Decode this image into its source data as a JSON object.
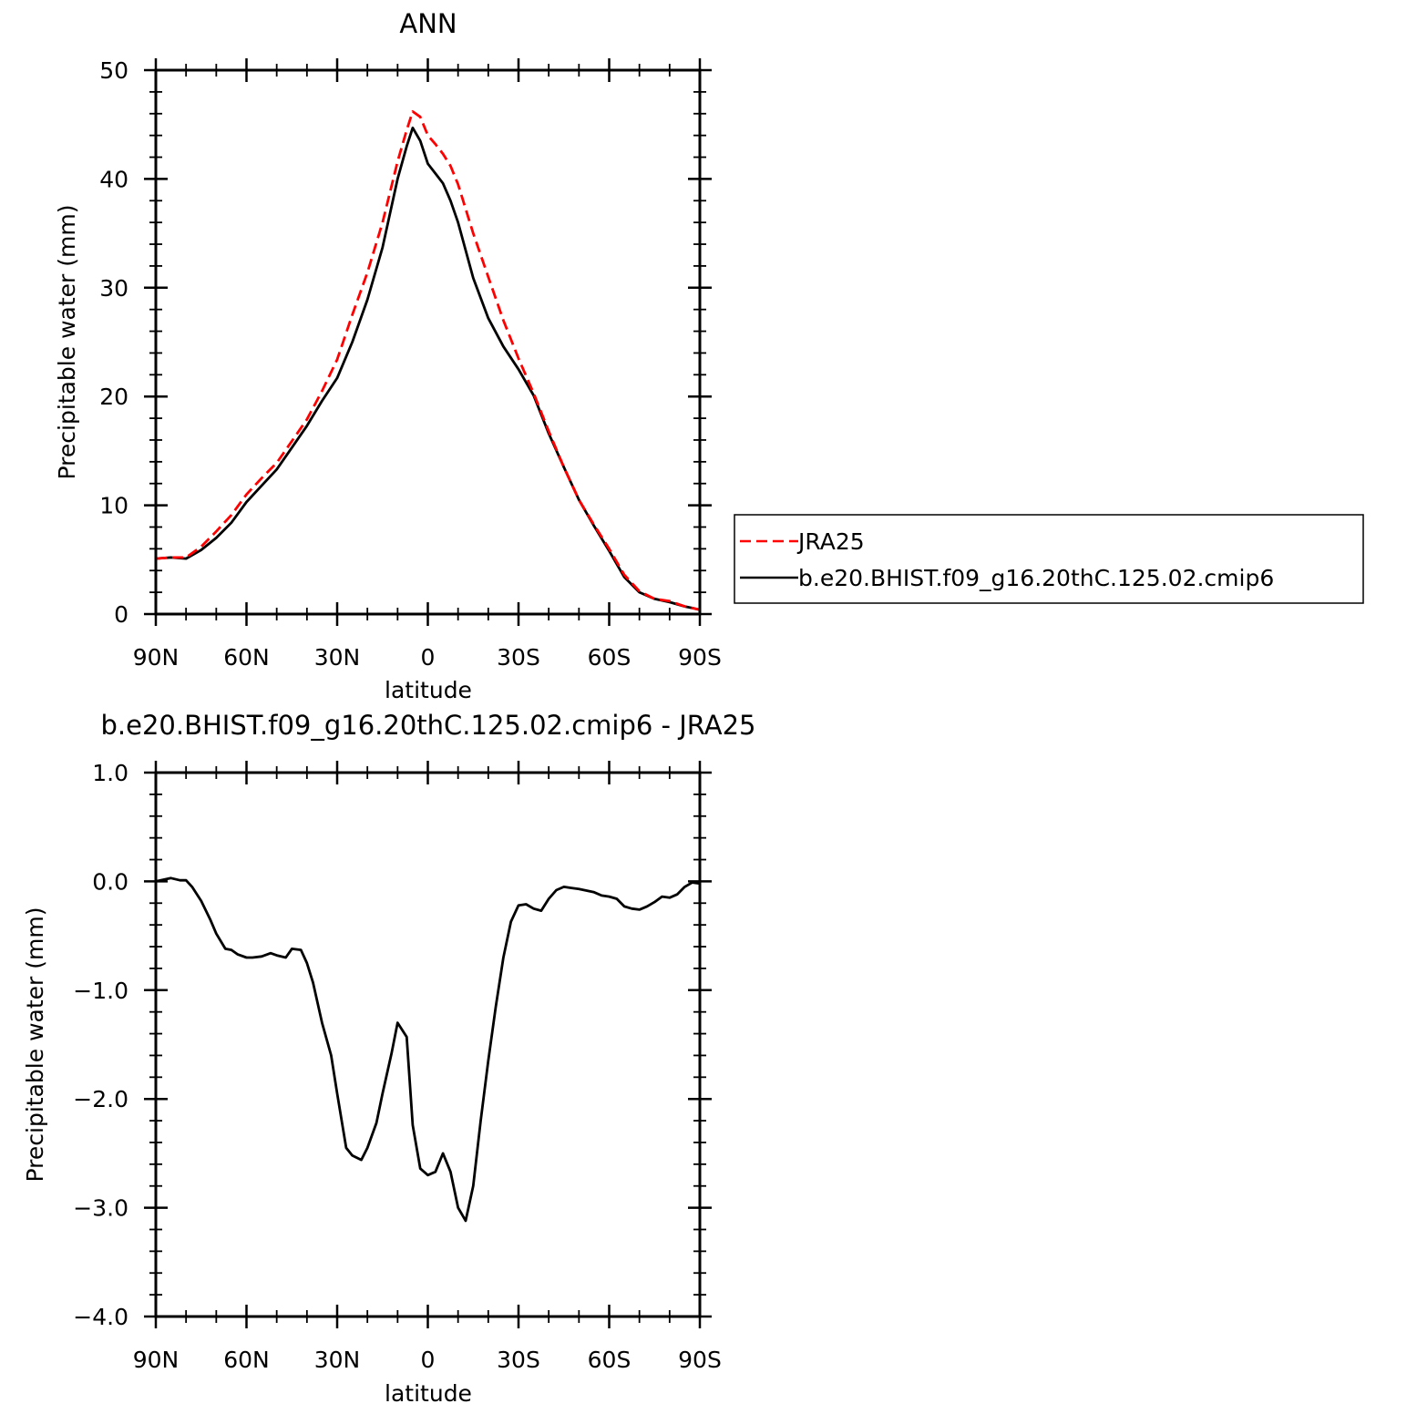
{
  "chart_data": [
    {
      "type": "line",
      "title": "ANN",
      "xlabel": "latitude",
      "ylabel": "Precipitable water (mm)",
      "xlim": [
        90,
        -90
      ],
      "ylim": [
        0,
        50
      ],
      "x_ticks": [
        {
          "value": 90,
          "label": "90N"
        },
        {
          "value": 60,
          "label": "60N"
        },
        {
          "value": 30,
          "label": "30N"
        },
        {
          "value": 0,
          "label": "0"
        },
        {
          "value": -30,
          "label": "30S"
        },
        {
          "value": -60,
          "label": "60S"
        },
        {
          "value": -90,
          "label": "90S"
        }
      ],
      "y_ticks": [
        {
          "value": 0,
          "label": "0"
        },
        {
          "value": 10,
          "label": "10"
        },
        {
          "value": 20,
          "label": "20"
        },
        {
          "value": 30,
          "label": "30"
        },
        {
          "value": 40,
          "label": "40"
        },
        {
          "value": 50,
          "label": "50"
        }
      ],
      "legend_position": "right",
      "series": [
        {
          "name": "JRA25",
          "color": "#ff0000",
          "dash": "dashed",
          "x": [
            90,
            85,
            80,
            75,
            70,
            65,
            60,
            55,
            50,
            45,
            40,
            35,
            30,
            25,
            20,
            15,
            10,
            7,
            5,
            2.5,
            0,
            -2.5,
            -5,
            -7.5,
            -10,
            -15,
            -20,
            -25,
            -30,
            -35,
            -40,
            -45,
            -50,
            -55,
            -60,
            -65,
            -70,
            -75,
            -80,
            -85,
            -90
          ],
          "values": [
            5.1,
            5.2,
            5.2,
            6.2,
            7.6,
            9.1,
            11.0,
            12.5,
            13.9,
            15.9,
            17.9,
            20.5,
            23.4,
            27.5,
            31.4,
            36.0,
            41.6,
            44.5,
            46.2,
            45.7,
            44.0,
            43.2,
            42.3,
            41.2,
            39.5,
            35.0,
            31.0,
            27.0,
            23.5,
            20.3,
            16.8,
            13.5,
            10.5,
            8.2,
            6.0,
            3.6,
            2.1,
            1.4,
            1.2,
            0.7,
            0.4
          ]
        },
        {
          "name": "b.e20.BHIST.f09_g16.20thC.125.02.cmip6",
          "color": "#000000",
          "dash": "solid",
          "x": [
            90,
            85,
            80,
            75,
            70,
            65,
            60,
            55,
            50,
            45,
            40,
            35,
            30,
            25,
            20,
            15,
            10,
            7,
            5,
            2.5,
            0,
            -2.5,
            -5,
            -7.5,
            -10,
            -15,
            -20,
            -25,
            -30,
            -35,
            -40,
            -45,
            -50,
            -55,
            -60,
            -65,
            -70,
            -75,
            -80,
            -85,
            -90
          ],
          "values": [
            5.1,
            5.2,
            5.1,
            5.9,
            7.0,
            8.4,
            10.3,
            11.8,
            13.3,
            15.3,
            17.3,
            19.6,
            21.7,
            25.0,
            28.9,
            33.7,
            40.0,
            43.0,
            44.7,
            43.5,
            41.4,
            40.5,
            39.6,
            38.0,
            36.0,
            30.9,
            27.2,
            24.6,
            22.5,
            20.1,
            16.6,
            13.5,
            10.5,
            8.1,
            5.8,
            3.4,
            2.0,
            1.4,
            1.1,
            0.7,
            0.4
          ]
        }
      ]
    },
    {
      "type": "line",
      "title": "b.e20.BHIST.f09_g16.20thC.125.02.cmip6 - JRA25",
      "xlabel": "latitude",
      "ylabel": "Precipitable water (mm)",
      "xlim": [
        90,
        -90
      ],
      "ylim": [
        -4,
        1
      ],
      "x_ticks": [
        {
          "value": 90,
          "label": "90N"
        },
        {
          "value": 60,
          "label": "60N"
        },
        {
          "value": 30,
          "label": "30N"
        },
        {
          "value": 0,
          "label": "0"
        },
        {
          "value": -30,
          "label": "30S"
        },
        {
          "value": -60,
          "label": "60S"
        },
        {
          "value": -90,
          "label": "90S"
        }
      ],
      "y_ticks": [
        {
          "value": 1,
          "label": "1.0"
        },
        {
          "value": 0,
          "label": "0.0"
        },
        {
          "value": -1,
          "label": "−1.0"
        },
        {
          "value": -2,
          "label": "−2.0"
        },
        {
          "value": -3,
          "label": "−3.0"
        },
        {
          "value": -4,
          "label": "−4.0"
        }
      ],
      "series": [
        {
          "name": "",
          "color": "#000000",
          "dash": "solid",
          "x": [
            90,
            85,
            82,
            80,
            78,
            75,
            72,
            70,
            67,
            65,
            63,
            60,
            58,
            55,
            52,
            50,
            47,
            45,
            42,
            40,
            38,
            35,
            32,
            30,
            27,
            25,
            22,
            20,
            17,
            15,
            12,
            10,
            7,
            5,
            2.5,
            0,
            -2.5,
            -5,
            -7.5,
            -10,
            -12.5,
            -15,
            -17.5,
            -20,
            -22.5,
            -25,
            -27.5,
            -30,
            -32.5,
            -35,
            -37.5,
            -40,
            -42.5,
            -45,
            -47.5,
            -50,
            -55,
            -57.5,
            -60,
            -62.5,
            -65,
            -67.5,
            -70,
            -72.5,
            -75,
            -77.5,
            -80,
            -82.5,
            -85,
            -87.5,
            -90
          ],
          "values": [
            0.0,
            0.03,
            0.01,
            0.01,
            -0.05,
            -0.18,
            -0.35,
            -0.48,
            -0.62,
            -0.63,
            -0.67,
            -0.7,
            -0.7,
            -0.69,
            -0.66,
            -0.68,
            -0.7,
            -0.62,
            -0.63,
            -0.75,
            -0.93,
            -1.3,
            -1.6,
            -1.95,
            -2.45,
            -2.52,
            -2.56,
            -2.45,
            -2.22,
            -1.95,
            -1.58,
            -1.3,
            -1.43,
            -2.24,
            -2.64,
            -2.7,
            -2.67,
            -2.5,
            -2.67,
            -3.0,
            -3.12,
            -2.8,
            -2.2,
            -1.65,
            -1.15,
            -0.7,
            -0.37,
            -0.22,
            -0.21,
            -0.25,
            -0.27,
            -0.16,
            -0.08,
            -0.05,
            -0.06,
            -0.07,
            -0.1,
            -0.13,
            -0.14,
            -0.16,
            -0.23,
            -0.25,
            -0.26,
            -0.23,
            -0.19,
            -0.14,
            -0.15,
            -0.12,
            -0.05,
            -0.01,
            -0.02
          ]
        }
      ]
    }
  ]
}
